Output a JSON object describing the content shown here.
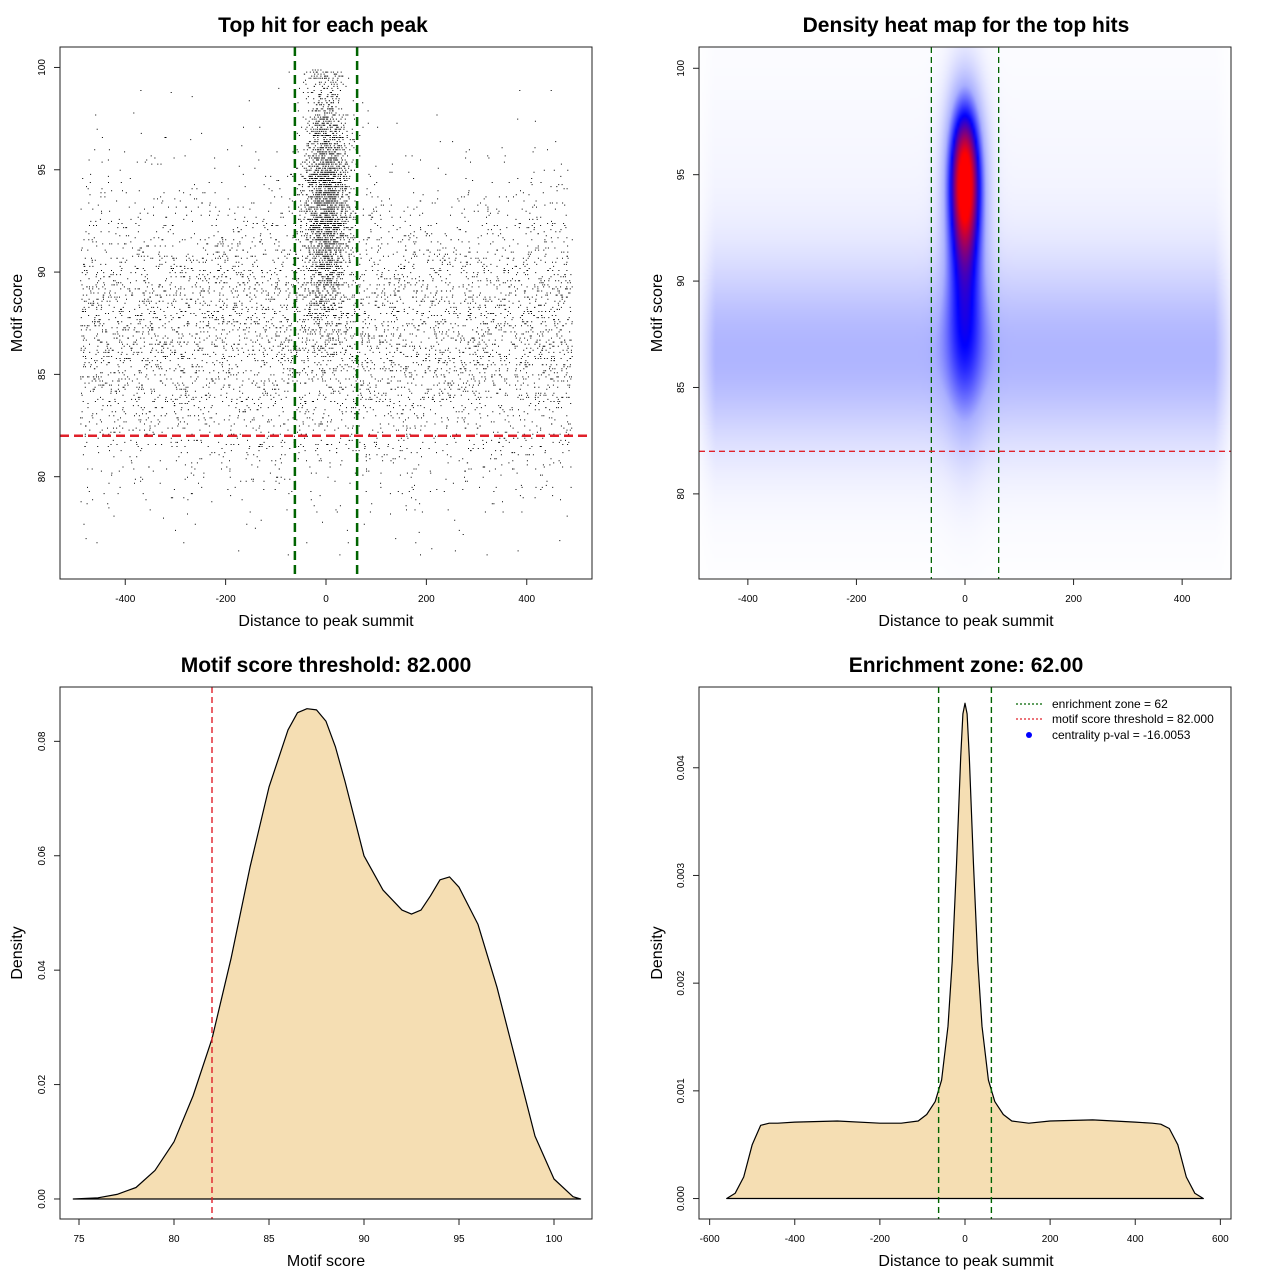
{
  "chart_data": [
    {
      "id": "scatter",
      "type": "scatter",
      "title": "Top hit for each peak",
      "xlabel": "Distance to peak summit",
      "ylabel": "Motif score",
      "xlim": [
        -530,
        530
      ],
      "ylim": [
        75,
        101
      ],
      "xticks": [
        -400,
        -200,
        0,
        200,
        400
      ],
      "yticks": [
        80,
        85,
        90,
        95,
        100
      ],
      "xtick_labels": [
        "-400",
        "-200",
        "0",
        "200",
        "400"
      ],
      "ytick_labels": [
        "80",
        "85",
        "90",
        "95",
        "100"
      ],
      "vlines": [
        -62,
        62
      ],
      "hlines": [
        82
      ],
      "vline_color": "#006400",
      "hline_color": "#e0202a",
      "point_color": "#000000",
      "point_groups": [
        {
          "name": "background",
          "x_range": [
            -490,
            490
          ],
          "y_mode": 87,
          "y_sd": 3.6,
          "n": 9000
        },
        {
          "name": "central-peak",
          "x_center": 0,
          "x_sd": 22,
          "y_mode": 93.5,
          "y_sd": 3.0,
          "n": 5500
        }
      ]
    },
    {
      "id": "heatmap",
      "type": "heatmap",
      "title": "Density heat map for the top hits",
      "xlabel": "Distance to peak summit",
      "ylabel": "Motif score",
      "xlim": [
        -490,
        490
      ],
      "ylim": [
        76,
        101
      ],
      "xticks": [
        -400,
        -200,
        0,
        200,
        400
      ],
      "yticks": [
        80,
        85,
        90,
        95,
        100
      ],
      "xtick_labels": [
        "-400",
        "-200",
        "0",
        "200",
        "400"
      ],
      "ytick_labels": [
        "80",
        "85",
        "90",
        "95",
        "100"
      ],
      "vlines": [
        -62,
        62
      ],
      "hlines": [
        82
      ],
      "vline_color": "#006400",
      "hline_color": "#e0202a",
      "color_scale": [
        "#ffffff",
        "#aab0ff",
        "#0000ff",
        "#ff0000"
      ],
      "hotspot": {
        "x": 0,
        "y": 95
      },
      "background_band": {
        "x_range": [
          -500,
          500
        ],
        "y_center": 86.5,
        "y_sd": 3.0
      }
    },
    {
      "id": "score-density",
      "type": "area",
      "title": "Motif score threshold: 82.000",
      "xlabel": "Motif score",
      "ylabel": "Density",
      "xlim": [
        74,
        102
      ],
      "ylim": [
        -0.0035,
        0.0895
      ],
      "xticks": [
        75,
        80,
        85,
        90,
        95,
        100
      ],
      "yticks": [
        0.0,
        0.02,
        0.04,
        0.06,
        0.08
      ],
      "xtick_labels": [
        "75",
        "80",
        "85",
        "90",
        "95",
        "100"
      ],
      "ytick_labels": [
        "0.00",
        "0.02",
        "0.04",
        "0.06",
        "0.08"
      ],
      "vlines": [
        82
      ],
      "vline_color": "#e0202a",
      "fill_color": "#f5deb3",
      "x": [
        74.7,
        76,
        77,
        78,
        79,
        80,
        81,
        82,
        83,
        84,
        85,
        86,
        86.5,
        87,
        87.5,
        88,
        88.5,
        89,
        90,
        91,
        92,
        92.5,
        93,
        93.5,
        94,
        94.5,
        95,
        96,
        97,
        98,
        99,
        100,
        101,
        101.4
      ],
      "y": [
        0.0,
        0.0002,
        0.0008,
        0.002,
        0.005,
        0.01,
        0.018,
        0.028,
        0.042,
        0.058,
        0.072,
        0.082,
        0.085,
        0.0857,
        0.0855,
        0.0835,
        0.079,
        0.073,
        0.06,
        0.054,
        0.0505,
        0.0498,
        0.0505,
        0.053,
        0.0558,
        0.0563,
        0.0545,
        0.048,
        0.037,
        0.024,
        0.011,
        0.0035,
        0.0004,
        0.0
      ]
    },
    {
      "id": "distance-density",
      "type": "area",
      "title": "Enrichment zone: 62.00",
      "xlabel": "Distance to peak summit",
      "ylabel": "Density",
      "xlim": [
        -625,
        625
      ],
      "ylim": [
        -0.00019,
        0.00475
      ],
      "xticks": [
        -600,
        -400,
        -200,
        0,
        200,
        400,
        600
      ],
      "yticks": [
        0.0,
        0.001,
        0.002,
        0.003,
        0.004
      ],
      "xtick_labels": [
        "-600",
        "-400",
        "-200",
        "0",
        "200",
        "400",
        "600"
      ],
      "ytick_labels": [
        "0.000",
        "0.001",
        "0.002",
        "0.003",
        "0.004"
      ],
      "vlines": [
        -62,
        62
      ],
      "vline_color": "#006400",
      "fill_color": "#f5deb3",
      "x": [
        -560,
        -540,
        -520,
        -500,
        -480,
        -460,
        -440,
        -400,
        -300,
        -200,
        -150,
        -110,
        -90,
        -70,
        -55,
        -40,
        -30,
        -20,
        -10,
        -5,
        0,
        5,
        10,
        20,
        30,
        40,
        55,
        70,
        90,
        110,
        150,
        200,
        300,
        400,
        440,
        460,
        480,
        500,
        520,
        540,
        560
      ],
      "y": [
        0.0,
        5e-05,
        0.0002,
        0.0005,
        0.00068,
        0.0007,
        0.0007,
        0.00071,
        0.00072,
        0.0007,
        0.0007,
        0.00072,
        0.00078,
        0.0009,
        0.0011,
        0.0016,
        0.0022,
        0.0031,
        0.0041,
        0.0045,
        0.0046,
        0.0045,
        0.0041,
        0.0031,
        0.0022,
        0.0016,
        0.0011,
        0.0009,
        0.00078,
        0.00072,
        0.0007,
        0.00072,
        0.00073,
        0.00071,
        0.0007,
        0.00069,
        0.00065,
        0.0005,
        0.0002,
        5e-05,
        0.0
      ],
      "legend": {
        "placement": "top-right",
        "entries": [
          {
            "label": "enrichment zone = 62",
            "style": "dotted-line",
            "color": "#006400"
          },
          {
            "label": "motif score threshold = 82.000",
            "style": "dotted-line",
            "color": "#e0202a"
          },
          {
            "label": "centrality p-val = -16.0053",
            "style": "point",
            "color": "#0000ff"
          }
        ]
      }
    }
  ]
}
